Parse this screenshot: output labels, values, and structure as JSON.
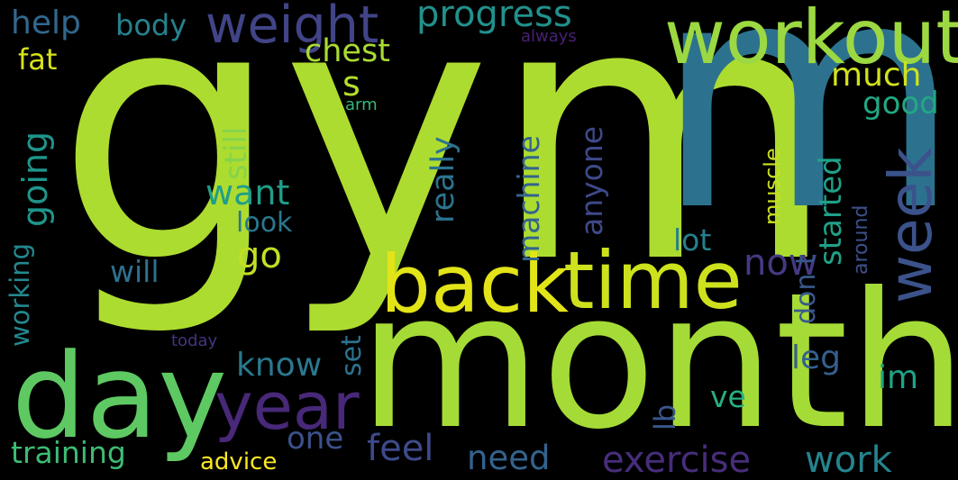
{
  "words": [
    {
      "id": "gym",
      "text": "gym",
      "color": "#addc30",
      "vertical": false
    },
    {
      "id": "month",
      "text": "month",
      "color": "#a5db36",
      "vertical": false
    },
    {
      "id": "m",
      "text": "m",
      "color": "#2c728e",
      "vertical": false
    },
    {
      "id": "workout",
      "text": "workout",
      "color": "#9cd841",
      "vertical": false
    },
    {
      "id": "day",
      "text": "day",
      "color": "#5ec962",
      "vertical": false
    },
    {
      "id": "back",
      "text": "back",
      "color": "#e3e418",
      "vertical": false
    },
    {
      "id": "time",
      "text": "time",
      "color": "#cde11d",
      "vertical": false
    },
    {
      "id": "week",
      "text": "week",
      "color": "#3b528b",
      "vertical": true
    },
    {
      "id": "year",
      "text": "year",
      "color": "#482878",
      "vertical": false
    },
    {
      "id": "weight",
      "text": "weight",
      "color": "#414487",
      "vertical": false
    },
    {
      "id": "progress",
      "text": "progress",
      "color": "#21918c",
      "vertical": false
    },
    {
      "id": "help",
      "text": "help",
      "color": "#31688e",
      "vertical": false
    },
    {
      "id": "body",
      "text": "body",
      "color": "#26828e",
      "vertical": false
    },
    {
      "id": "exercise",
      "text": "exercise",
      "color": "#472d7b",
      "vertical": false
    },
    {
      "id": "work",
      "text": "work",
      "color": "#25848e",
      "vertical": false
    },
    {
      "id": "training",
      "text": "training",
      "color": "#3dbc74",
      "vertical": false
    },
    {
      "id": "feel",
      "text": "feel",
      "color": "#3e4a89",
      "vertical": false
    },
    {
      "id": "need",
      "text": "need",
      "color": "#33638d",
      "vertical": false
    },
    {
      "id": "know",
      "text": "know",
      "color": "#2a788e",
      "vertical": false
    },
    {
      "id": "want",
      "text": "want",
      "color": "#1f9e89",
      "vertical": false
    },
    {
      "id": "now",
      "text": "now",
      "color": "#443a83",
      "vertical": false
    },
    {
      "id": "look",
      "text": "look",
      "color": "#2a788e",
      "vertical": false
    },
    {
      "id": "go",
      "text": "go",
      "color": "#c2df23",
      "vertical": false
    },
    {
      "id": "will",
      "text": "will",
      "color": "#2d718e",
      "vertical": false
    },
    {
      "id": "one",
      "text": "one",
      "color": "#3b528b",
      "vertical": false
    },
    {
      "id": "ve",
      "text": "ve",
      "color": "#29af7f",
      "vertical": false
    },
    {
      "id": "im",
      "text": "im",
      "color": "#20a386",
      "vertical": false
    },
    {
      "id": "leg",
      "text": "leg",
      "color": "#355f8d",
      "vertical": false
    },
    {
      "id": "lot",
      "text": "lot",
      "color": "#277f8e",
      "vertical": false
    },
    {
      "id": "chest",
      "text": "chest",
      "color": "#a8db34",
      "vertical": false
    },
    {
      "id": "much",
      "text": "much",
      "color": "#d0e11c",
      "vertical": false
    },
    {
      "id": "good",
      "text": "good",
      "color": "#22a884",
      "vertical": false
    },
    {
      "id": "fat",
      "text": "fat",
      "color": "#d8e219",
      "vertical": false
    },
    {
      "id": "advice",
      "text": "advice",
      "color": "#fde725",
      "vertical": false
    },
    {
      "id": "s",
      "text": "s",
      "color": "#b5de2b",
      "vertical": false
    },
    {
      "id": "arm",
      "text": "arm",
      "color": "#35b779",
      "vertical": false
    },
    {
      "id": "always",
      "text": "always",
      "color": "#482173",
      "vertical": false
    },
    {
      "id": "today",
      "text": "today",
      "color": "#46337f",
      "vertical": false
    },
    {
      "id": "going",
      "text": "going",
      "color": "#1f958b",
      "vertical": true
    },
    {
      "id": "working",
      "text": "working",
      "color": "#23888e",
      "vertical": true
    },
    {
      "id": "still",
      "text": "still",
      "color": "#84d44b",
      "vertical": true
    },
    {
      "id": "really",
      "text": "really",
      "color": "#2c738e",
      "vertical": true
    },
    {
      "id": "machine",
      "text": "machine",
      "color": "#33638d",
      "vertical": true
    },
    {
      "id": "anyone",
      "text": "anyone",
      "color": "#3e4989",
      "vertical": true
    },
    {
      "id": "muscle",
      "text": "muscle",
      "color": "#c8e020",
      "vertical": true
    },
    {
      "id": "started",
      "text": "started",
      "color": "#1fa188",
      "vertical": true
    },
    {
      "id": "around",
      "text": "around",
      "color": "#3c4f8a",
      "vertical": true
    },
    {
      "id": "don_t",
      "text": "don t",
      "color": "#38588c",
      "vertical": true
    },
    {
      "id": "set",
      "text": "set",
      "color": "#2c728e",
      "vertical": true
    },
    {
      "id": "lb",
      "text": "lb",
      "color": "#39568c",
      "vertical": true
    }
  ]
}
